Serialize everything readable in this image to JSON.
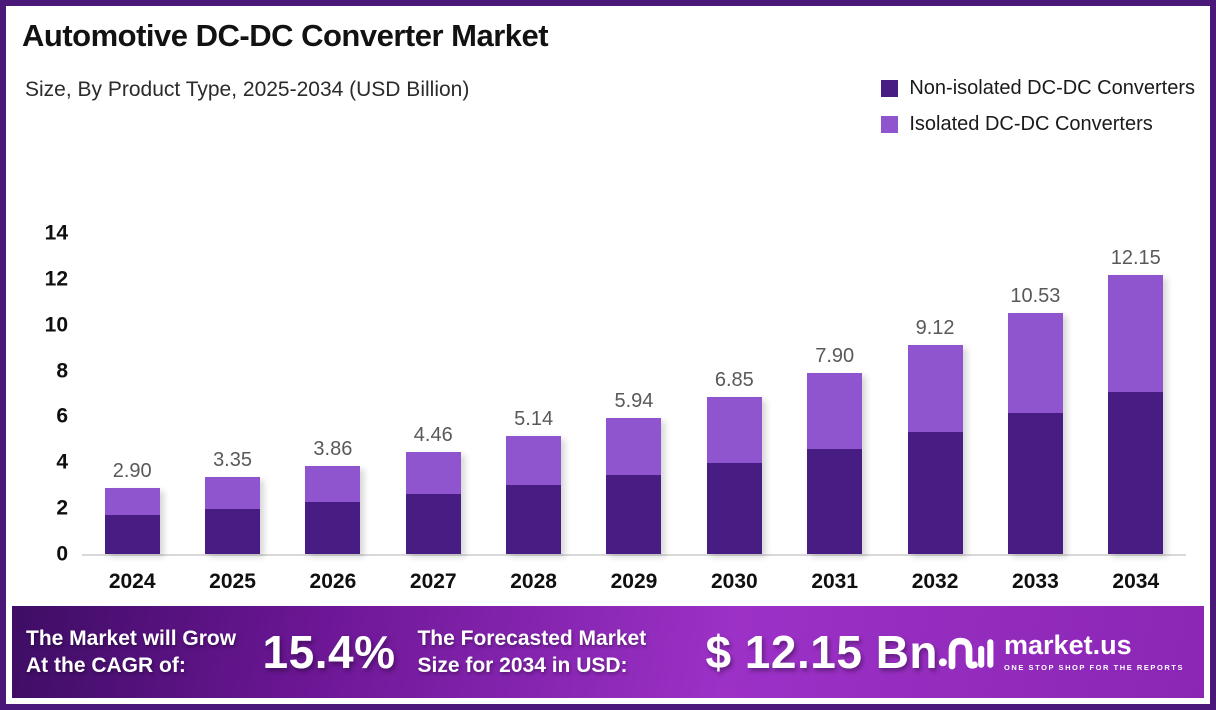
{
  "header": {
    "title": "Automotive DC-DC Converter Market",
    "subtitle": "Size, By Product Type, 2025-2034 (USD Billion)"
  },
  "legend": [
    {
      "label": "Non-isolated DC-DC Converters",
      "color": "#471D84"
    },
    {
      "label": "Isolated DC-DC Converters",
      "color": "#8F55CE"
    }
  ],
  "chart_data": {
    "type": "bar",
    "stacked": true,
    "title": "Automotive DC-DC Converter Market",
    "subtitle": "Size, By Product Type, 2025-2034 (USD Billion)",
    "categories": [
      "2024",
      "2025",
      "2026",
      "2027",
      "2028",
      "2029",
      "2030",
      "2031",
      "2032",
      "2033",
      "2034"
    ],
    "series": [
      {
        "name": "Non-isolated DC-DC Converters",
        "color": "#471D84",
        "values": [
          1.69,
          1.95,
          2.25,
          2.6,
          3.0,
          3.46,
          3.99,
          4.6,
          5.32,
          6.14,
          7.08
        ]
      },
      {
        "name": "Isolated DC-DC Converters",
        "color": "#8F55CE",
        "values": [
          1.21,
          1.4,
          1.61,
          1.86,
          2.14,
          2.48,
          2.86,
          3.3,
          3.8,
          4.39,
          5.07
        ]
      }
    ],
    "series_note": "stack split estimated from bar pixel heights; only totals are labeled in the chart",
    "totals": [
      2.9,
      3.35,
      3.86,
      4.46,
      5.14,
      5.94,
      6.85,
      7.9,
      9.12,
      10.53,
      12.15
    ],
    "totals_display": [
      "2.90",
      "3.35",
      "3.86",
      "4.46",
      "5.14",
      "5.94",
      "6.85",
      "7.90",
      "9.12",
      "10.53",
      "12.15"
    ],
    "xlabel": "",
    "ylabel": "",
    "ylim": [
      0,
      14
    ],
    "yticks": [
      0,
      2,
      4,
      6,
      8,
      10,
      12,
      14
    ],
    "grid": false,
    "legend_position": "top-right",
    "value_label_color": "#595959",
    "axis_line_color": "#D9D9D9"
  },
  "banner": {
    "cagr_label": "The Market will Grow At the CAGR of:",
    "cagr_value": "15.4%",
    "forecast_label": "The Forecasted Market Size for 2034 in USD:",
    "forecast_value": "$ 12.15 Bn",
    "logo_text": "market.us",
    "logo_tagline": "ONE STOP SHOP FOR THE REPORTS"
  },
  "colors": {
    "frame_border": "#4A1878",
    "banner_gradient": [
      "#3E0D64",
      "#6B1694",
      "#9C31C7",
      "#8B26B4"
    ]
  }
}
